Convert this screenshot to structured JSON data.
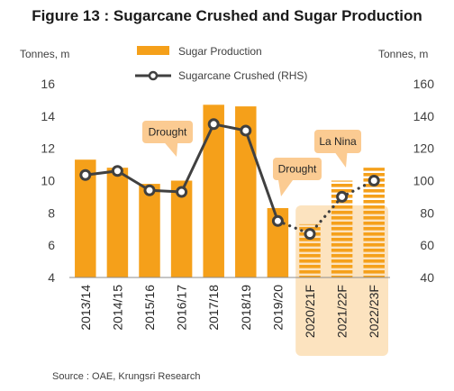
{
  "title": "Figure 13 : Sugarcane Crushed and Sugar Production",
  "left_unit": "Tonnes, m",
  "right_unit": "Tonnes, m",
  "source": "Source : OAE, Krungsri Research",
  "colors": {
    "bar": "#F5A01A",
    "line": "#404040",
    "marker_fill": "#ffffff",
    "forecast_band": "#FCE3BF",
    "callout": "#FBCB92"
  },
  "callouts": [
    {
      "text": "Drought",
      "category": "2016/17"
    },
    {
      "text": "Drought",
      "category": "2019/20"
    },
    {
      "text": "La Nina",
      "category": "2021/22F"
    }
  ],
  "chart_data": {
    "type": "bar",
    "categories": [
      "2013/14",
      "2014/15",
      "2015/16",
      "2016/17",
      "2017/18",
      "2018/19",
      "2019/20",
      "2020/21F",
      "2021/22F",
      "2022/23F"
    ],
    "forecast_categories": [
      "2020/21F",
      "2021/22F",
      "2022/23F"
    ],
    "series": [
      {
        "name": "Sugar Production",
        "type": "bar",
        "axis": "left",
        "values": [
          11.3,
          10.8,
          9.8,
          10.0,
          14.7,
          14.6,
          8.3,
          7.3,
          10.0,
          10.8
        ]
      },
      {
        "name": "Sugarcane Crushed (RHS)",
        "type": "line",
        "axis": "right",
        "values": [
          103.5,
          106,
          94,
          93,
          135,
          131,
          75,
          67,
          90,
          100
        ],
        "dotted_from_category": "2019/20"
      }
    ],
    "ylim_left": [
      4,
      16
    ],
    "yticks_left": [
      "4",
      "6",
      "8",
      "10",
      "12",
      "14",
      "16"
    ],
    "ylim_right": [
      40,
      160
    ],
    "yticks_right": [
      "40",
      "60",
      "80",
      "100",
      "120",
      "140",
      "160"
    ],
    "grid": false,
    "legend_position": "top-center"
  }
}
